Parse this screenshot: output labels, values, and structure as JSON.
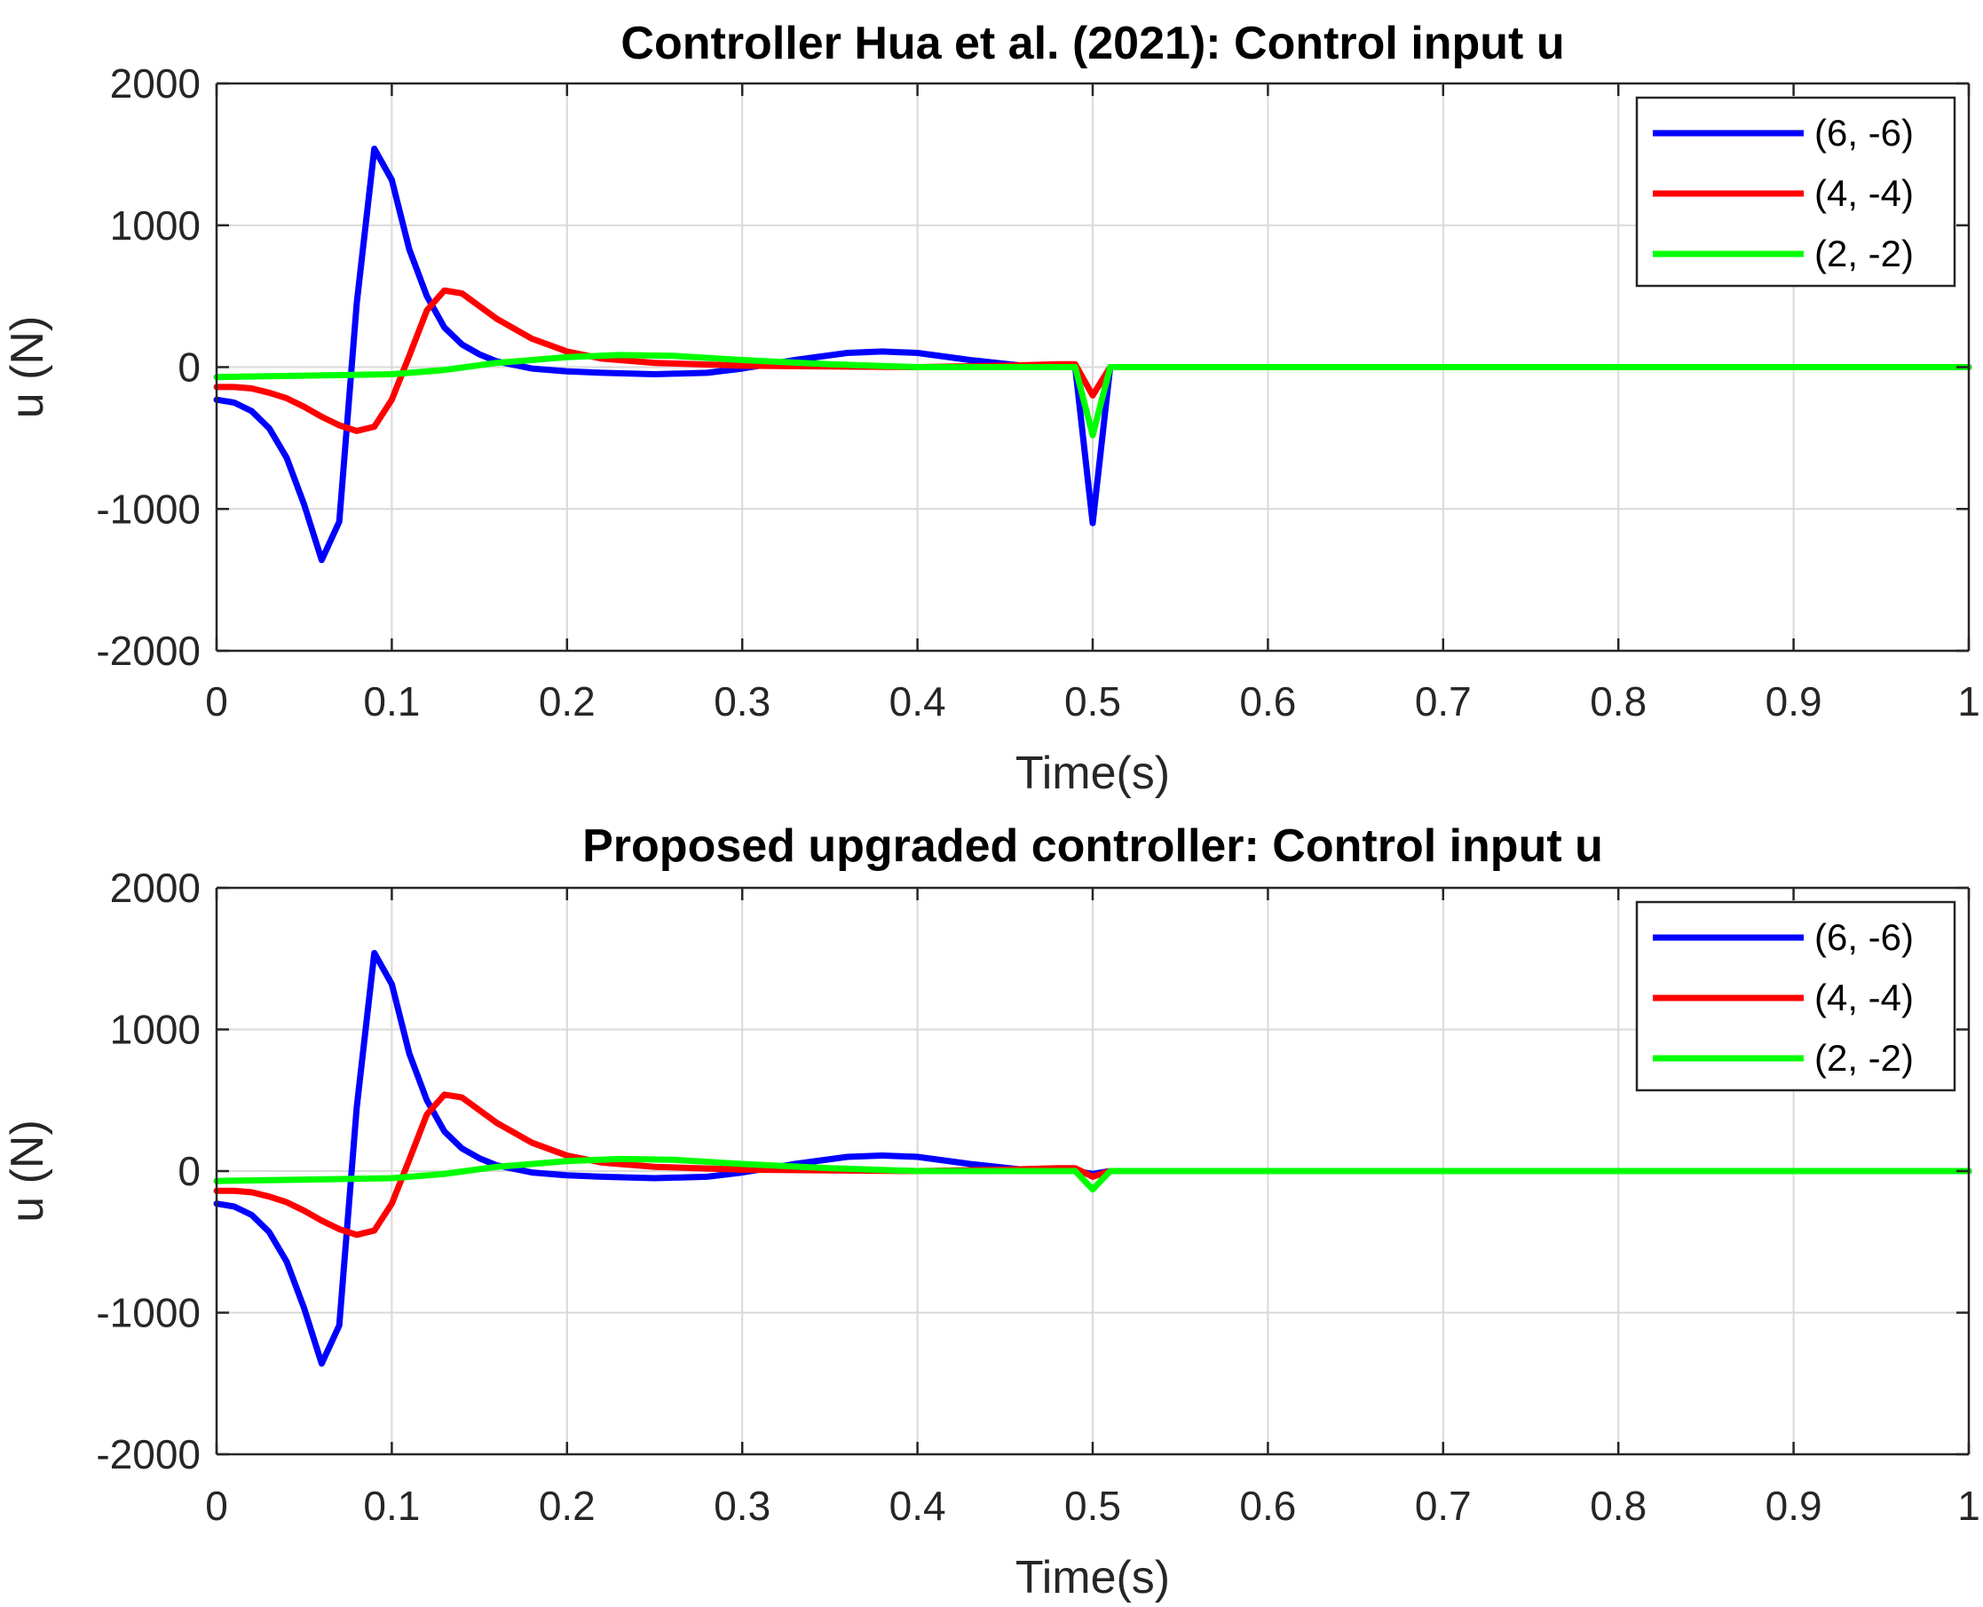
{
  "chart_data": [
    {
      "type": "line",
      "title": "Controller Hua et al. (2021): Control input u",
      "xlabel": "Time(s)",
      "ylabel": "u (N)",
      "xlim": [
        0,
        1
      ],
      "ylim": [
        -2000,
        2000
      ],
      "xticks": [
        0,
        0.1,
        0.2,
        0.3,
        0.4,
        0.5,
        0.6,
        0.7,
        0.8,
        0.9,
        1
      ],
      "xtick_labels": [
        "0",
        "0.1",
        "0.2",
        "0.3",
        "0.4",
        "0.5",
        "0.6",
        "0.7",
        "0.8",
        "0.9",
        "1"
      ],
      "yticks": [
        -2000,
        -1000,
        0,
        1000,
        2000
      ],
      "ytick_labels": [
        "-2000",
        "-1000",
        "0",
        "1000",
        "2000"
      ],
      "grid": true,
      "legend_position": "top-right",
      "series": [
        {
          "name": "(6, -6)",
          "color": "#0000ff",
          "x": [
            0,
            0.01,
            0.02,
            0.03,
            0.04,
            0.05,
            0.06,
            0.07,
            0.08,
            0.09,
            0.1,
            0.11,
            0.12,
            0.13,
            0.14,
            0.15,
            0.16,
            0.18,
            0.2,
            0.22,
            0.25,
            0.28,
            0.3,
            0.33,
            0.36,
            0.38,
            0.4,
            0.43,
            0.46,
            0.48,
            0.49,
            0.5,
            0.51,
            0.6,
            0.7,
            0.8,
            0.9,
            1.0
          ],
          "y": [
            -230,
            -250,
            -310,
            -430,
            -640,
            -970,
            -1360,
            -1090,
            450,
            1540,
            1320,
            830,
            500,
            280,
            160,
            90,
            40,
            -10,
            -30,
            -40,
            -50,
            -40,
            -10,
            50,
            100,
            110,
            100,
            50,
            10,
            5,
            0,
            -1100,
            0,
            0,
            0,
            0,
            0,
            0
          ]
        },
        {
          "name": "(4, -4)",
          "color": "#ff0000",
          "x": [
            0,
            0.01,
            0.02,
            0.03,
            0.04,
            0.05,
            0.06,
            0.07,
            0.08,
            0.09,
            0.1,
            0.11,
            0.12,
            0.13,
            0.14,
            0.15,
            0.16,
            0.18,
            0.2,
            0.22,
            0.25,
            0.3,
            0.35,
            0.4,
            0.45,
            0.48,
            0.49,
            0.5,
            0.51,
            0.6,
            0.7,
            0.8,
            0.9,
            1.0
          ],
          "y": [
            -140,
            -140,
            -150,
            -180,
            -220,
            -280,
            -350,
            -410,
            -450,
            -420,
            -230,
            80,
            400,
            540,
            520,
            430,
            340,
            200,
            110,
            60,
            30,
            10,
            5,
            0,
            10,
            20,
            20,
            -200,
            0,
            0,
            0,
            0,
            0,
            0
          ]
        },
        {
          "name": "(2, -2)",
          "color": "#00ff00",
          "x": [
            0,
            0.05,
            0.1,
            0.13,
            0.16,
            0.2,
            0.23,
            0.26,
            0.3,
            0.35,
            0.4,
            0.45,
            0.49,
            0.5,
            0.51,
            0.6,
            0.7,
            0.8,
            0.9,
            1.0
          ],
          "y": [
            -70,
            -60,
            -50,
            -20,
            30,
            70,
            85,
            80,
            50,
            20,
            0,
            0,
            0,
            -480,
            0,
            0,
            0,
            0,
            0,
            0
          ]
        }
      ]
    },
    {
      "type": "line",
      "title": "Proposed upgraded controller: Control input u",
      "xlabel": "Time(s)",
      "ylabel": "u (N)",
      "xlim": [
        0,
        1
      ],
      "ylim": [
        -2000,
        2000
      ],
      "xticks": [
        0,
        0.1,
        0.2,
        0.3,
        0.4,
        0.5,
        0.6,
        0.7,
        0.8,
        0.9,
        1
      ],
      "xtick_labels": [
        "0",
        "0.1",
        "0.2",
        "0.3",
        "0.4",
        "0.5",
        "0.6",
        "0.7",
        "0.8",
        "0.9",
        "1"
      ],
      "yticks": [
        -2000,
        -1000,
        0,
        1000,
        2000
      ],
      "ytick_labels": [
        "-2000",
        "-1000",
        "0",
        "1000",
        "2000"
      ],
      "grid": true,
      "legend_position": "top-right",
      "series": [
        {
          "name": "(6, -6)",
          "color": "#0000ff",
          "x": [
            0,
            0.01,
            0.02,
            0.03,
            0.04,
            0.05,
            0.06,
            0.07,
            0.08,
            0.09,
            0.1,
            0.11,
            0.12,
            0.13,
            0.14,
            0.15,
            0.16,
            0.18,
            0.2,
            0.22,
            0.25,
            0.28,
            0.3,
            0.33,
            0.36,
            0.38,
            0.4,
            0.43,
            0.46,
            0.48,
            0.49,
            0.5,
            0.51,
            0.6,
            0.7,
            0.8,
            0.9,
            1.0
          ],
          "y": [
            -230,
            -250,
            -310,
            -430,
            -640,
            -970,
            -1360,
            -1090,
            450,
            1540,
            1320,
            830,
            500,
            280,
            160,
            90,
            40,
            -10,
            -30,
            -40,
            -50,
            -40,
            -10,
            50,
            100,
            110,
            100,
            50,
            10,
            5,
            0,
            -20,
            0,
            0,
            0,
            0,
            0,
            0
          ]
        },
        {
          "name": "(4, -4)",
          "color": "#ff0000",
          "x": [
            0,
            0.01,
            0.02,
            0.03,
            0.04,
            0.05,
            0.06,
            0.07,
            0.08,
            0.09,
            0.1,
            0.11,
            0.12,
            0.13,
            0.14,
            0.15,
            0.16,
            0.18,
            0.2,
            0.22,
            0.25,
            0.3,
            0.35,
            0.4,
            0.45,
            0.48,
            0.49,
            0.5,
            0.51,
            0.6,
            0.7,
            0.8,
            0.9,
            1.0
          ],
          "y": [
            -140,
            -140,
            -150,
            -180,
            -220,
            -280,
            -350,
            -410,
            -450,
            -420,
            -230,
            80,
            400,
            540,
            520,
            430,
            340,
            200,
            110,
            60,
            30,
            10,
            5,
            0,
            10,
            20,
            20,
            -40,
            0,
            0,
            0,
            0,
            0,
            0
          ]
        },
        {
          "name": "(2, -2)",
          "color": "#00ff00",
          "x": [
            0,
            0.05,
            0.1,
            0.13,
            0.16,
            0.2,
            0.23,
            0.26,
            0.3,
            0.35,
            0.4,
            0.45,
            0.49,
            0.5,
            0.51,
            0.6,
            0.7,
            0.8,
            0.9,
            1.0
          ],
          "y": [
            -70,
            -60,
            -50,
            -20,
            30,
            70,
            85,
            80,
            50,
            20,
            0,
            0,
            0,
            -130,
            0,
            0,
            0,
            0,
            0,
            0
          ]
        }
      ]
    }
  ]
}
